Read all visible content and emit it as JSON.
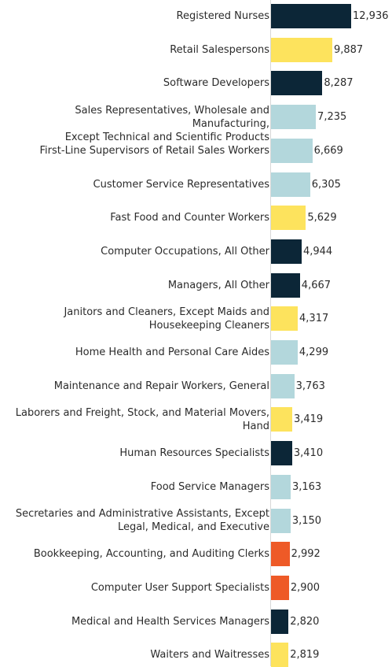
{
  "colors": {
    "navy": "#0c2637",
    "yellow": "#fde35d",
    "light_blue": "#b3d7dc",
    "orange": "#ee5a27"
  },
  "chart_data": {
    "type": "bar",
    "orientation": "horizontal",
    "xlim": [
      0,
      12936
    ],
    "grid": false,
    "categories": [
      "Registered Nurses",
      "Retail Salespersons",
      "Software Developers",
      "Sales Representatives, Wholesale and Manufacturing,\nExcept Technical and Scientific Products",
      "First-Line Supervisors of Retail Sales Workers",
      "Customer Service Representatives",
      "Fast Food and Counter Workers",
      "Computer Occupations, All Other",
      "Managers, All Other",
      "Janitors and Cleaners, Except Maids and\nHousekeeping Cleaners",
      "Home Health and Personal Care Aides",
      "Maintenance and Repair Workers, General",
      "Laborers and Freight, Stock, and Material Movers,\nHand",
      "Human Resources Specialists",
      "Food Service Managers",
      "Secretaries and Administrative Assistants, Except\nLegal, Medical, and Executive",
      "Bookkeeping, Accounting, and Auditing Clerks",
      "Computer User Support Specialists",
      "Medical and Health Services Managers",
      "Waiters and Waitresses"
    ],
    "values": [
      12936,
      9887,
      8287,
      7235,
      6669,
      6305,
      5629,
      4944,
      4667,
      4317,
      4299,
      3763,
      3419,
      3410,
      3163,
      3150,
      2992,
      2900,
      2820,
      2819
    ],
    "value_labels": [
      "12,936",
      "9,887",
      "8,287",
      "7,235",
      "6,669",
      "6,305",
      "5,629",
      "4,944",
      "4,667",
      "4,317",
      "4,299",
      "3,763",
      "3,419",
      "3,410",
      "3,163",
      "3,150",
      "2,992",
      "2,900",
      "2,820",
      "2,819"
    ],
    "bar_colors": [
      "navy",
      "yellow",
      "navy",
      "light_blue",
      "light_blue",
      "light_blue",
      "yellow",
      "navy",
      "navy",
      "yellow",
      "light_blue",
      "light_blue",
      "yellow",
      "navy",
      "light_blue",
      "light_blue",
      "orange",
      "orange",
      "navy",
      "yellow"
    ]
  }
}
